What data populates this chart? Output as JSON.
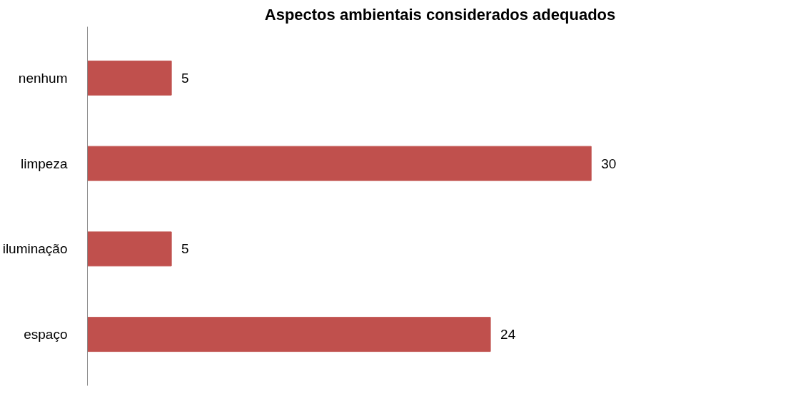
{
  "chart_data": {
    "type": "bar",
    "orientation": "horizontal",
    "title": "Aspectos ambientais considerados adequados",
    "categories": [
      "nenhum",
      "limpeza",
      "iluminação",
      "espaço"
    ],
    "values": [
      5,
      30,
      5,
      24
    ],
    "color": "#c0504d",
    "data_labels": true,
    "grid": false
  }
}
